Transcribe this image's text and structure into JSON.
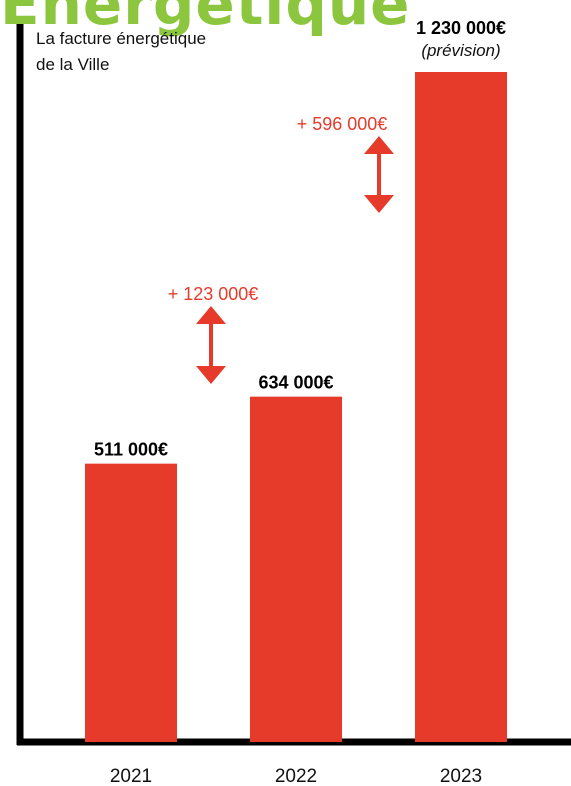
{
  "chart_data": {
    "type": "bar",
    "title": "Énergétique",
    "subtitle_lines": [
      "La facture énergétique",
      "de la Ville"
    ],
    "categories": [
      "2021",
      "2022",
      "2023"
    ],
    "values": [
      511000,
      634000,
      1230000
    ],
    "value_labels": [
      "511 000€",
      "634 000€",
      "1 230 000€"
    ],
    "value_notes": [
      "",
      "",
      "(prévision)"
    ],
    "increases": [
      {
        "from": "2021",
        "to": "2022",
        "label": "+ 123 000€"
      },
      {
        "from": "2022",
        "to": "2023",
        "label": "+ 596 000€"
      }
    ],
    "ylim": [
      0,
      1230000
    ],
    "grid": false,
    "colors": {
      "bar": "#e63b2a",
      "increase": "#e63b2a",
      "title": "#8cc63f",
      "axis": "#000000",
      "text": "#111111"
    }
  }
}
